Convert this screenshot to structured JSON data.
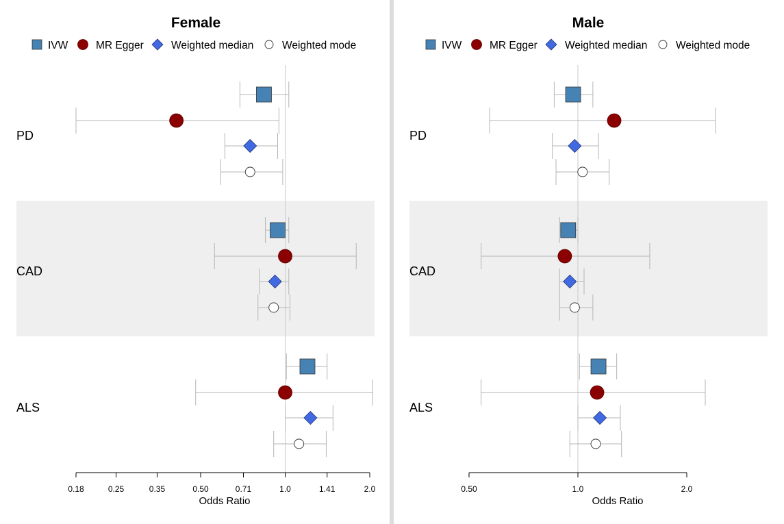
{
  "chart_data": [
    {
      "type": "forest",
      "title": "Female",
      "xlabel": "Odds Ratio",
      "x_scale": "log",
      "xlim": [
        0.18,
        2.0
      ],
      "reference_line": 1.0,
      "tick_labels": [
        "0.18",
        "0.25",
        "0.35",
        "0.50",
        "0.71",
        "1.0",
        "1.41",
        "2.0"
      ],
      "tick_values": [
        0.18,
        0.25,
        0.35,
        0.5,
        0.71,
        1.0,
        1.41,
        2.0
      ],
      "legend": {
        "placement": "top",
        "entries": [
          "IVW",
          "MR Egger",
          "Weighted median",
          "Weighted mode"
        ]
      },
      "groups": [
        {
          "label": "PD",
          "shaded": false,
          "estimates": [
            {
              "method": "IVW",
              "or": 0.84,
              "ci": [
                0.69,
                1.03
              ]
            },
            {
              "method": "MR Egger",
              "or": 0.41,
              "ci": [
                0.18,
                0.95
              ]
            },
            {
              "method": "Weighted median",
              "or": 0.75,
              "ci": [
                0.61,
                0.94
              ]
            },
            {
              "method": "Weighted mode",
              "or": 0.75,
              "ci": [
                0.59,
                0.98
              ]
            }
          ]
        },
        {
          "label": "CAD",
          "shaded": true,
          "estimates": [
            {
              "method": "IVW",
              "or": 0.94,
              "ci": [
                0.85,
                1.03
              ]
            },
            {
              "method": "MR Egger",
              "or": 1.0,
              "ci": [
                0.56,
                1.79
              ]
            },
            {
              "method": "Weighted median",
              "or": 0.92,
              "ci": [
                0.81,
                1.03
              ]
            },
            {
              "method": "Weighted mode",
              "or": 0.91,
              "ci": [
                0.8,
                1.04
              ]
            }
          ]
        },
        {
          "label": "ALS",
          "shaded": false,
          "estimates": [
            {
              "method": "IVW",
              "or": 1.2,
              "ci": [
                1.01,
                1.41
              ]
            },
            {
              "method": "MR Egger",
              "or": 1.0,
              "ci": [
                0.48,
                2.05
              ]
            },
            {
              "method": "Weighted median",
              "or": 1.23,
              "ci": [
                1.0,
                1.48
              ]
            },
            {
              "method": "Weighted mode",
              "or": 1.12,
              "ci": [
                0.91,
                1.4
              ]
            }
          ]
        }
      ]
    },
    {
      "type": "forest",
      "title": "Male",
      "xlabel": "Odds Ratio",
      "x_scale": "log",
      "xlim": [
        0.5,
        2.0
      ],
      "reference_line": 1.0,
      "tick_labels": [
        "0.50",
        "1.0",
        "2.0"
      ],
      "tick_values": [
        0.5,
        1.0,
        2.0
      ],
      "legend": {
        "placement": "top",
        "entries": [
          "IVW",
          "MR Egger",
          "Weighted median",
          "Weighted mode"
        ]
      },
      "groups": [
        {
          "label": "PD",
          "shaded": false,
          "estimates": [
            {
              "method": "IVW",
              "or": 0.97,
              "ci": [
                0.86,
                1.1
              ]
            },
            {
              "method": "MR Egger",
              "or": 1.26,
              "ci": [
                0.57,
                2.4
              ]
            },
            {
              "method": "Weighted median",
              "or": 0.98,
              "ci": [
                0.85,
                1.14
              ]
            },
            {
              "method": "Weighted mode",
              "or": 1.03,
              "ci": [
                0.87,
                1.22
              ]
            }
          ]
        },
        {
          "label": "CAD",
          "shaded": true,
          "estimates": [
            {
              "method": "IVW",
              "or": 0.94,
              "ci": [
                0.89,
                1.0
              ]
            },
            {
              "method": "MR Egger",
              "or": 0.92,
              "ci": [
                0.54,
                1.58
              ]
            },
            {
              "method": "Weighted median",
              "or": 0.95,
              "ci": [
                0.89,
                1.04
              ]
            },
            {
              "method": "Weighted mode",
              "or": 0.98,
              "ci": [
                0.89,
                1.1
              ]
            }
          ]
        },
        {
          "label": "ALS",
          "shaded": false,
          "estimates": [
            {
              "method": "IVW",
              "or": 1.14,
              "ci": [
                1.01,
                1.28
              ]
            },
            {
              "method": "MR Egger",
              "or": 1.13,
              "ci": [
                0.54,
                2.25
              ]
            },
            {
              "method": "Weighted median",
              "or": 1.15,
              "ci": [
                1.0,
                1.31
              ]
            },
            {
              "method": "Weighted mode",
              "or": 1.12,
              "ci": [
                0.95,
                1.32
              ]
            }
          ]
        }
      ]
    }
  ],
  "colors": {
    "ivw_fill": "#4682b4",
    "egger_fill": "#8b0000",
    "median_fill": "#4169e1",
    "mode_fill": "#ffffff",
    "ci_line": "#b5b5b5",
    "ref_line": "#c8c8c8",
    "shade": "#efefef",
    "divider": "#dcdcdc"
  },
  "icons": {
    "IVW": "square-marker-icon",
    "MR Egger": "circle-filled-marker-icon",
    "Weighted median": "diamond-marker-icon",
    "Weighted mode": "circle-open-marker-icon"
  }
}
